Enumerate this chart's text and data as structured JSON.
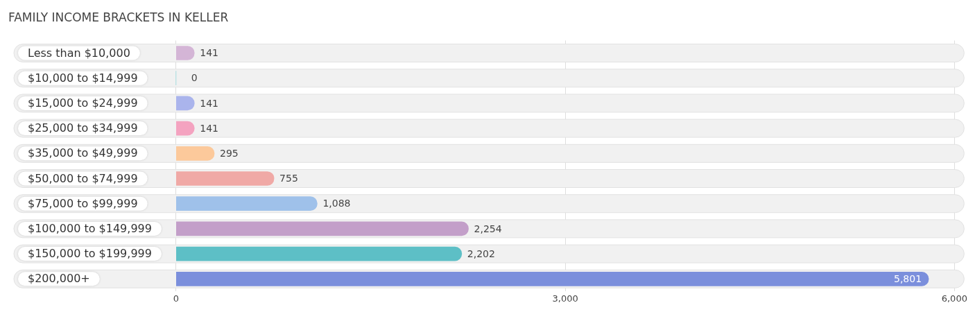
{
  "chart_data": {
    "type": "bar",
    "orientation": "horizontal",
    "title": "FAMILY INCOME BRACKETS IN KELLER",
    "categories": [
      "Less than $10,000",
      "$10,000 to $14,999",
      "$15,000 to $24,999",
      "$25,000 to $34,999",
      "$35,000 to $49,999",
      "$50,000 to $74,999",
      "$75,000 to $99,999",
      "$100,000 to $149,999",
      "$150,000 to $199,999",
      "$200,000+"
    ],
    "values": [
      141,
      0,
      141,
      141,
      295,
      755,
      1088,
      2254,
      2202,
      5801
    ],
    "colors": [
      "#d4b5d6",
      "#7ecfd6",
      "#aab4ec",
      "#f4a3c0",
      "#fcc99b",
      "#f0a9a6",
      "#9fc1ea",
      "#c39fc9",
      "#5dbfc6",
      "#7b8fdc"
    ],
    "xlim": [
      -1250,
      6075
    ],
    "xticks": [
      0,
      {
        "value": 3000,
        "label": "3,000"
      },
      {
        "value": 6000,
        "label": "6,000"
      }
    ],
    "value_labels": [
      "141",
      "0",
      "141",
      "141",
      "295",
      "755",
      "1,088",
      "2,254",
      "2,202",
      "5,801"
    ],
    "grid": "x",
    "legend": false
  }
}
